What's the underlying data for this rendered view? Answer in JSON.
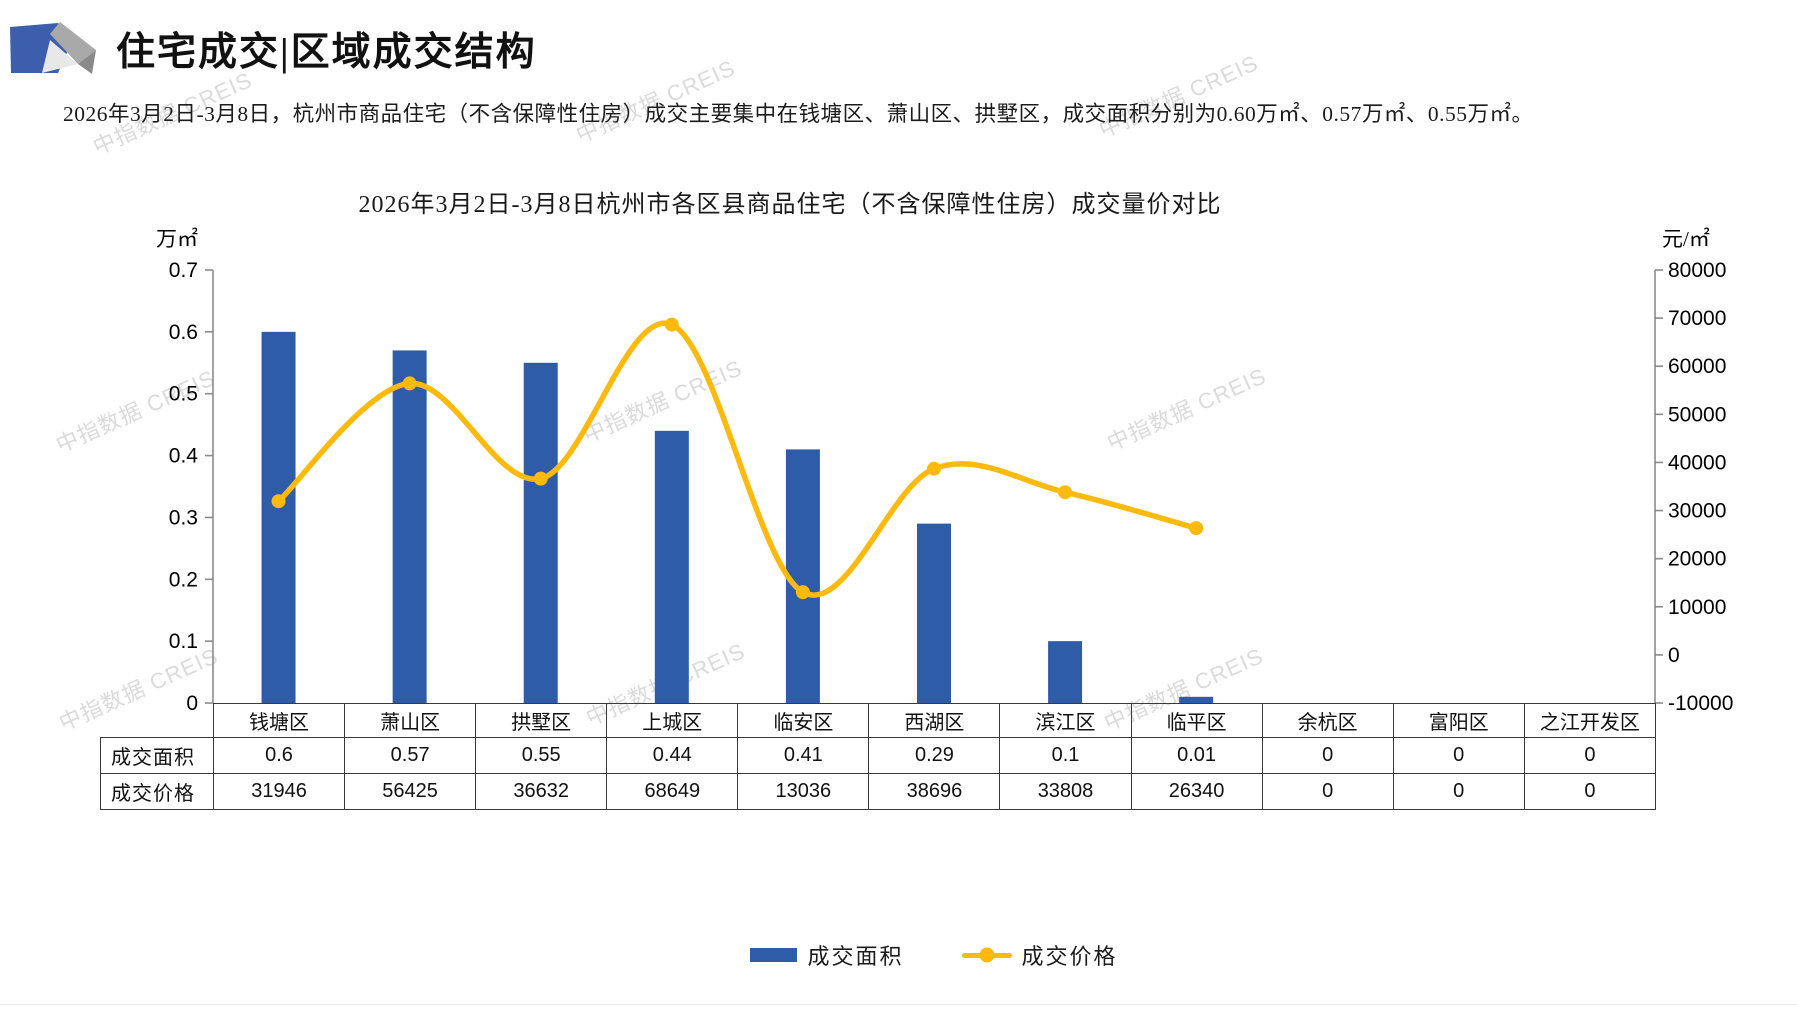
{
  "page": {
    "title": "住宅成交|区域成交结构",
    "description": "2026年3月2日-3月8日，杭州市商品住宅（不含保障性住房）成交主要集中在钱塘区、萧山区、拱墅区，成交面积分别为0.60万㎡、0.57万㎡、0.55万㎡。",
    "watermark_text": "中指数据 CREIS"
  },
  "chart_data": {
    "type": "combo-bar-line",
    "title": "2026年3月2日-3月8日杭州市各区县商品住宅（不含保障性住房）成交量价对比",
    "categories": [
      "钱塘区",
      "萧山区",
      "拱墅区",
      "上城区",
      "临安区",
      "西湖区",
      "滨江区",
      "临平区",
      "余杭区",
      "富阳区",
      "之江开发区"
    ],
    "series": [
      {
        "name": "成交面积",
        "type": "bar",
        "axis": "left",
        "color": "#2F5CA8",
        "values": [
          0.6,
          0.57,
          0.55,
          0.44,
          0.41,
          0.29,
          0.1,
          0.01,
          0,
          0,
          0
        ]
      },
      {
        "name": "成交价格",
        "type": "line",
        "axis": "right",
        "color": "#FBBA0D",
        "values": [
          31946,
          56425,
          36632,
          68649,
          13036,
          38696,
          33808,
          26340,
          0,
          0,
          0
        ],
        "points_drawn": 8
      }
    ],
    "left_axis": {
      "label": "万㎡",
      "min": 0,
      "max": 0.7,
      "step": 0.1
    },
    "right_axis": {
      "label": "元/㎡",
      "min": -10000,
      "max": 80000,
      "step": 10000
    },
    "grid": false,
    "legend_position": "bottom",
    "table_rows": [
      {
        "label": "成交面积",
        "values": [
          "0.6",
          "0.57",
          "0.55",
          "0.44",
          "0.41",
          "0.29",
          "0.1",
          "0.01",
          "0",
          "0",
          "0"
        ]
      },
      {
        "label": "成交价格",
        "values": [
          "31946",
          "56425",
          "36632",
          "68649",
          "13036",
          "38696",
          "33808",
          "26340",
          "0",
          "0",
          "0"
        ]
      }
    ]
  }
}
